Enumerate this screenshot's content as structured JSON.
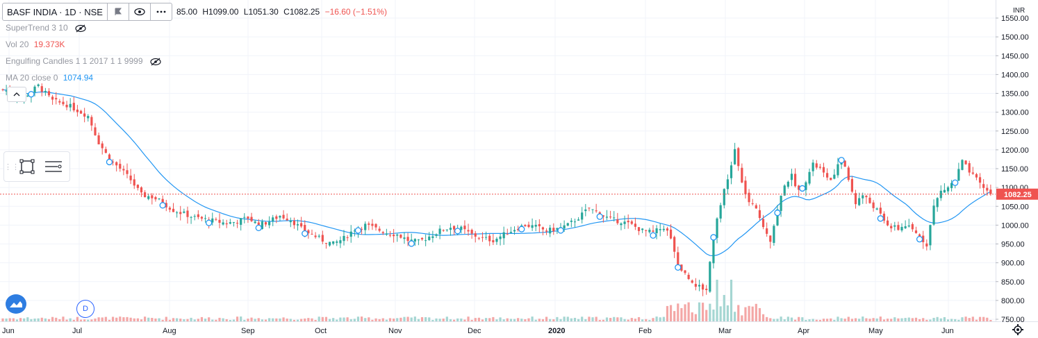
{
  "symbol": {
    "label": "BASF INDIA · 1D · NSE",
    "flag_icon": "flag-icon",
    "eye_icon": "eye-icon",
    "more_icon": "more-dots-icon"
  },
  "ohlc": {
    "open": "85.00",
    "high": "H1099.00",
    "low": "L1051.30",
    "close": "C1082.25",
    "change": "−16.60 (−1.51%)"
  },
  "indicators": [
    {
      "label": "SuperTrend 3 10",
      "value": "",
      "value_color": "#9598a1",
      "hidden": true
    },
    {
      "label": "Vol 20",
      "value": "19.373K",
      "value_color": "#ef5350",
      "hidden": false
    },
    {
      "label": "Engulfing Candles 1 1 2017 1 1 9999",
      "value": "",
      "value_color": "#9598a1",
      "hidden": true
    },
    {
      "label": "MA 20 close 0",
      "value": "1074.94",
      "value_color": "#2196f3",
      "hidden": false
    }
  ],
  "currency": "INR",
  "current_price_label": "1082.25",
  "dbutton_label": "D",
  "colors": {
    "up": "#26a69a",
    "down": "#ef5350",
    "ma": "#2196f3",
    "vol_up": "#a5d6d2",
    "vol_down": "#f4a7a6",
    "price_tag": "#ef5350",
    "grid": "#f0f3fa"
  },
  "chart_data": {
    "type": "candlestick",
    "y_axis_ticks": [
      750,
      800,
      850,
      900,
      950,
      1000,
      1050,
      1100,
      1150,
      1200,
      1250,
      1300,
      1350,
      1400,
      1450,
      1500,
      1550
    ],
    "ylim": [
      745,
      1560
    ],
    "x_axis_labels": [
      "Jun",
      "Jul",
      "Aug",
      "Sep",
      "Oct",
      "Nov",
      "Dec",
      "2020",
      "Feb",
      "Mar",
      "Apr",
      "May",
      "Jun"
    ],
    "closing_path": [
      [
        0,
        1360
      ],
      [
        6,
        1340
      ],
      [
        10,
        1370
      ],
      [
        14,
        1330
      ],
      [
        18,
        1320
      ],
      [
        22,
        1300
      ],
      [
        24,
        1290
      ],
      [
        27,
        1220
      ],
      [
        30,
        1175
      ],
      [
        33,
        1150
      ],
      [
        36,
        1120
      ],
      [
        39,
        1080
      ],
      [
        42,
        1075
      ],
      [
        45,
        1060
      ],
      [
        48,
        1040
      ],
      [
        51,
        1030
      ],
      [
        54,
        1020
      ],
      [
        57,
        1015
      ],
      [
        60,
        1010
      ],
      [
        63,
        1005
      ],
      [
        66,
        1010
      ],
      [
        69,
        1020
      ],
      [
        72,
        1000
      ],
      [
        75,
        1010
      ],
      [
        78,
        1025
      ],
      [
        81,
        1015
      ],
      [
        84,
        990
      ],
      [
        87,
        975
      ],
      [
        90,
        960
      ],
      [
        93,
        950
      ],
      [
        96,
        965
      ],
      [
        99,
        990
      ],
      [
        102,
        1000
      ],
      [
        105,
        990
      ],
      [
        108,
        980
      ],
      [
        111,
        975
      ],
      [
        114,
        960
      ],
      [
        117,
        955
      ],
      [
        120,
        970
      ],
      [
        123,
        985
      ],
      [
        126,
        995
      ],
      [
        129,
        990
      ],
      [
        132,
        975
      ],
      [
        135,
        965
      ],
      [
        138,
        960
      ],
      [
        141,
        975
      ],
      [
        144,
        990
      ],
      [
        147,
        1000
      ],
      [
        150,
        995
      ],
      [
        153,
        985
      ],
      [
        156,
        990
      ],
      [
        159,
        1000
      ],
      [
        162,
        1020
      ],
      [
        165,
        1045
      ],
      [
        168,
        1030
      ],
      [
        171,
        1015
      ],
      [
        174,
        1010
      ],
      [
        177,
        1000
      ],
      [
        180,
        985
      ],
      [
        183,
        980
      ],
      [
        186,
        995
      ],
      [
        188,
        970
      ],
      [
        190,
        895
      ],
      [
        192,
        870
      ],
      [
        194,
        850
      ],
      [
        196,
        835
      ],
      [
        198,
        830
      ],
      [
        200,
        975
      ],
      [
        202,
        1060
      ],
      [
        204,
        1120
      ],
      [
        206,
        1200
      ],
      [
        208,
        1110
      ],
      [
        210,
        1060
      ],
      [
        212,
        1040
      ],
      [
        214,
        1000
      ],
      [
        216,
        960
      ],
      [
        218,
        1040
      ],
      [
        220,
        1110
      ],
      [
        222,
        1130
      ],
      [
        224,
        1090
      ],
      [
        226,
        1120
      ],
      [
        228,
        1160
      ],
      [
        230,
        1150
      ],
      [
        232,
        1120
      ],
      [
        234,
        1130
      ],
      [
        236,
        1180
      ],
      [
        238,
        1120
      ],
      [
        240,
        1060
      ],
      [
        242,
        1080
      ],
      [
        244,
        1060
      ],
      [
        246,
        1040
      ],
      [
        248,
        1010
      ],
      [
        250,
        995
      ],
      [
        252,
        990
      ],
      [
        254,
        1000
      ],
      [
        256,
        985
      ],
      [
        258,
        970
      ],
      [
        260,
        950
      ],
      [
        262,
        1050
      ],
      [
        264,
        1090
      ],
      [
        266,
        1100
      ],
      [
        268,
        1120
      ],
      [
        270,
        1170
      ],
      [
        272,
        1140
      ],
      [
        274,
        1120
      ],
      [
        276,
        1100
      ],
      [
        278,
        1082.25
      ]
    ],
    "ma_series": "MA 20 close 0",
    "last_close": 1082.25
  }
}
